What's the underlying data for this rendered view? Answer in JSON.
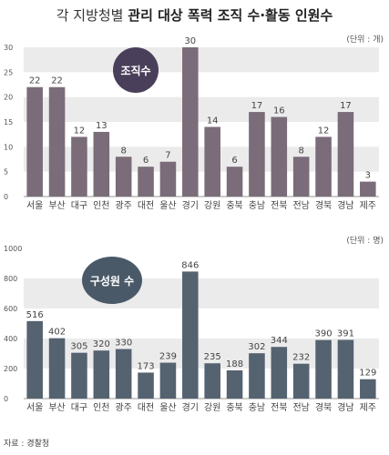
{
  "title": {
    "light": "각 지방청별",
    "bold": "관리 대상 폭력 조직 수·활동 인원수"
  },
  "source": "자료 : 경찰청",
  "colors": {
    "chart1_bar": "#7a6c79",
    "chart1_badge": "#4a3f5a",
    "chart2_bar": "#556270",
    "chart2_badge": "#4a5968",
    "band": "#ebebeb"
  },
  "chart_data": [
    {
      "type": "bar",
      "badge_label": "조직수",
      "unit_label": "(단위 : 개)",
      "categories": [
        "서울",
        "부산",
        "대구",
        "인천",
        "광주",
        "대전",
        "울산",
        "경기",
        "강원",
        "충북",
        "충남",
        "전북",
        "전남",
        "경북",
        "경남",
        "제주"
      ],
      "values": [
        22,
        22,
        12,
        13,
        8,
        6,
        7,
        30,
        14,
        6,
        17,
        16,
        8,
        12,
        17,
        3
      ],
      "yticks": [
        0,
        5,
        10,
        15,
        20,
        25,
        30
      ],
      "ylim": [
        0,
        30
      ]
    },
    {
      "type": "bar",
      "badge_label": "구성원 수",
      "unit_label": "(단위 : 명)",
      "categories": [
        "서울",
        "부산",
        "대구",
        "인천",
        "광주",
        "대전",
        "울산",
        "경기",
        "강원",
        "충북",
        "충남",
        "전북",
        "전남",
        "경북",
        "경남",
        "제주"
      ],
      "values": [
        516,
        402,
        305,
        320,
        330,
        173,
        239,
        846,
        235,
        188,
        302,
        344,
        232,
        390,
        391,
        129
      ],
      "yticks": [
        0,
        200,
        400,
        600,
        800,
        1000
      ],
      "ylim": [
        0,
        1000
      ]
    }
  ]
}
